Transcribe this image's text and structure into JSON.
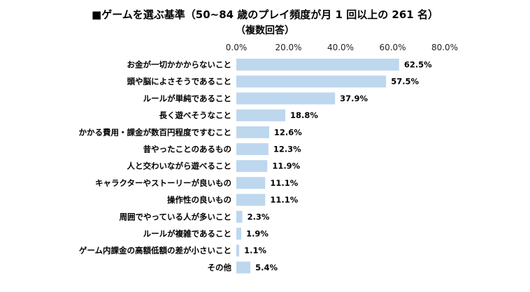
{
  "chart_data": {
    "type": "bar",
    "orientation": "horizontal",
    "title": "■ゲームを選ぶ基準（50~84 歳のプレイ頻度が月 1 回以上の 261 名）",
    "subtitle": "（複数回答）",
    "xlim": [
      0,
      80
    ],
    "xticks": [
      "0.0%",
      "20.0%",
      "40.0%",
      "60.0%",
      "80.0%"
    ],
    "grid": false,
    "bar_color": "#bdd7ee",
    "categories": [
      "お金が一切かかからないこと",
      "頭や脳によさそうであること",
      "ルールが単純であること",
      "長く遊べそうなこと",
      "かかる費用・課金が数百円程度ですむこと",
      "昔やったことのあるもの",
      "人と交わいながら遊べること",
      "キャラクターやストーリーが良いもの",
      "操作性の良いもの",
      "周囲でやっている人が多いこと",
      "ルールが複雑であること",
      "ゲーム内課金の高額低額の差が小さいこと",
      "その他"
    ],
    "values": [
      62.5,
      57.5,
      37.9,
      18.8,
      12.6,
      12.3,
      11.9,
      11.1,
      11.1,
      2.3,
      1.9,
      1.1,
      5.4
    ],
    "labels": [
      "62.5%",
      "57.5%",
      "37.9%",
      "18.8%",
      "12.6%",
      "12.3%",
      "11.9%",
      "11.1%",
      "11.1%",
      "2.3%",
      "1.9%",
      "1.1%",
      "5.4%"
    ]
  }
}
